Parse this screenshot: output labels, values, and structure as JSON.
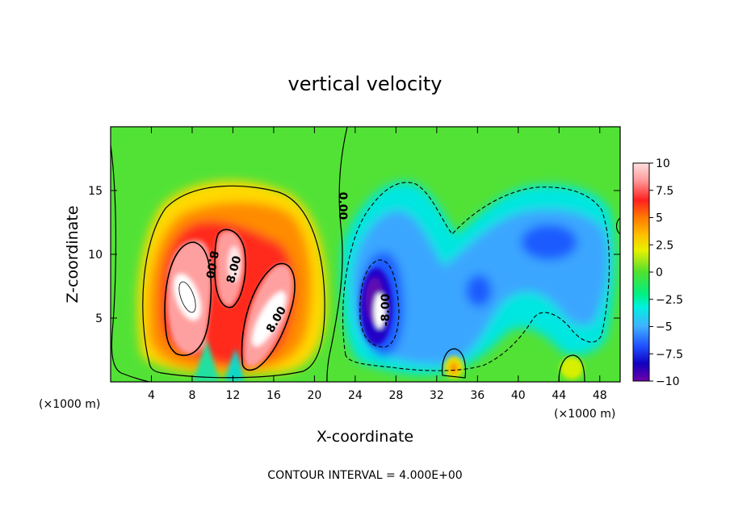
{
  "chart_data": {
    "type": "heatmap",
    "title": "vertical velocity",
    "xlabel": "X-coordinate",
    "ylabel": "Z-coordinate",
    "x_unit": "(×1000 m)",
    "y_unit": "(×1000 m)",
    "xlim": [
      0,
      50
    ],
    "ylim": [
      0,
      20
    ],
    "x_ticks": [
      4,
      8,
      12,
      16,
      20,
      24,
      28,
      32,
      36,
      40,
      44,
      48
    ],
    "y_ticks": [
      5,
      10,
      15
    ],
    "colorbar": {
      "ticks": [
        "10",
        "7.5",
        "5",
        "2.5",
        "0",
        "−2.5",
        "−5",
        "−7.5",
        "−10"
      ],
      "range": [
        -10,
        10
      ],
      "colors": [
        "#ffe0e0",
        "#ff9a9a",
        "#ff2020",
        "#ff7a00",
        "#ffc000",
        "#e8f000",
        "#50e030",
        "#00f080",
        "#00f0e0",
        "#40b0ff",
        "#2050ff",
        "#1000c0",
        "#7000a8"
      ]
    },
    "contour_labels": [
      "0.00",
      "8.00",
      "8.00",
      "8.00",
      "-8.00"
    ],
    "contour_interval_note": "CONTOUR INTERVAL = 4.000E+00",
    "features": [
      {
        "name": "updraft-left",
        "x": 7.7,
        "z": 6.9,
        "value": 10
      },
      {
        "name": "updraft-mid",
        "x": 11.5,
        "z": 9.7,
        "value": 9
      },
      {
        "name": "updraft-right",
        "x": 15.8,
        "z": 6.3,
        "value": 10
      },
      {
        "name": "downdraft-core",
        "x": 26.3,
        "z": 6.0,
        "value": -10
      },
      {
        "name": "downdraft-east",
        "x": 43.2,
        "z": 10.7,
        "value": -5.5
      },
      {
        "name": "downdraft-center",
        "x": 35.5,
        "z": 7.0,
        "value": -6
      },
      {
        "name": "weak-updraft-a",
        "x": 33.5,
        "z": 1.2,
        "value": 4
      },
      {
        "name": "weak-updraft-b",
        "x": 45.0,
        "z": 1.0,
        "value": 3
      }
    ]
  }
}
